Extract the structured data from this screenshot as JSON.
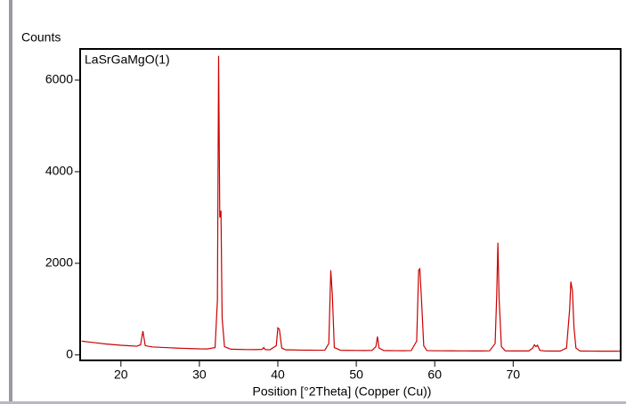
{
  "chart_data": {
    "type": "line",
    "y_label": "Counts",
    "x_label": "Position [°2Theta] (Copper (Cu))",
    "x": [
      15.0,
      16.0,
      17.0,
      18.0,
      19.0,
      20.0,
      21.0,
      22.0,
      22.5,
      22.8,
      23.1,
      24.0,
      25.0,
      26.0,
      27.0,
      28.0,
      29.0,
      30.0,
      31.0,
      32.0,
      32.3,
      32.45,
      32.6,
      32.75,
      32.9,
      33.2,
      34.0,
      35.0,
      36.0,
      37.0,
      38.0,
      38.2,
      38.4,
      39.0,
      39.8,
      40.0,
      40.2,
      40.5,
      41.0,
      42.0,
      43.0,
      44.0,
      45.0,
      46.0,
      46.5,
      46.75,
      46.95,
      47.2,
      48.0,
      49.0,
      50.0,
      51.0,
      52.0,
      52.5,
      52.7,
      52.9,
      53.5,
      54.0,
      55.0,
      56.0,
      57.0,
      57.7,
      57.95,
      58.1,
      58.3,
      58.6,
      59.0,
      60.0,
      61.0,
      62.0,
      63.0,
      64.0,
      65.0,
      66.0,
      67.0,
      67.7,
      67.9,
      68.05,
      68.2,
      68.5,
      69.0,
      70.0,
      71.0,
      72.0,
      72.5,
      72.7,
      72.9,
      73.1,
      73.4,
      74.0,
      75.0,
      76.0,
      76.8,
      77.2,
      77.35,
      77.55,
      77.75,
      78.0,
      78.5,
      79.0,
      80.0,
      81.0,
      82.0,
      83.0,
      83.7
    ],
    "series": [
      {
        "name": "LaSrGaMgO(1)",
        "color": "#cc0000",
        "values": [
          300,
          280,
          260,
          240,
          225,
          210,
          200,
          190,
          220,
          520,
          200,
          175,
          165,
          158,
          150,
          143,
          138,
          132,
          130,
          160,
          1200,
          6530,
          3000,
          3150,
          800,
          180,
          125,
          120,
          117,
          115,
          120,
          160,
          115,
          112,
          200,
          590,
          560,
          150,
          110,
          108,
          105,
          104,
          102,
          105,
          250,
          1850,
          1300,
          160,
          100,
          98,
          97,
          96,
          98,
          180,
          400,
          150,
          95,
          94,
          93,
          92,
          95,
          300,
          1850,
          1880,
          1250,
          200,
          95,
          90,
          90,
          89,
          88,
          88,
          87,
          87,
          90,
          250,
          1300,
          2450,
          1250,
          180,
          88,
          86,
          86,
          86,
          150,
          220,
          180,
          210,
          100,
          85,
          84,
          84,
          150,
          1000,
          1600,
          1400,
          600,
          150,
          85,
          84,
          83,
          82,
          82,
          81,
          80
        ]
      }
    ],
    "xlim": [
      14.8,
      83.7
    ],
    "ylim": [
      -120,
      6680
    ],
    "xticks": [
      20,
      30,
      40,
      50,
      60,
      70
    ],
    "yticks": [
      0,
      2000,
      4000,
      6000
    ]
  }
}
